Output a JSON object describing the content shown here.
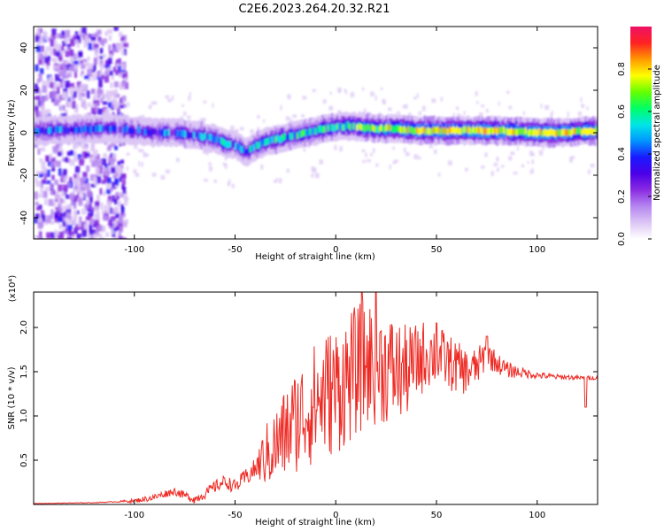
{
  "title": "C2E6.2023.264.20.32.R21",
  "colors": {
    "snr_line": "#ee2a24",
    "axis": "#000000",
    "colormap": [
      "#ffffff",
      "#dcc6f5",
      "#b586f0",
      "#8a2be2",
      "#4b00e8",
      "#1a1aff",
      "#0096ff",
      "#00e6e6",
      "#00ff66",
      "#66ff00",
      "#ffff00",
      "#ff9900",
      "#ff2222",
      "#ee1166"
    ]
  },
  "chart_data": [
    {
      "type": "heatmap",
      "xlabel": "Height of straight line (km)",
      "ylabel": "Frequency (Hz)",
      "xlim": [
        -150,
        130
      ],
      "ylim": [
        -50,
        50
      ],
      "xticks": [
        -100,
        -50,
        0,
        50,
        100
      ],
      "yticks": [
        -40,
        -20,
        0,
        20,
        40
      ],
      "grid": false,
      "colorbar": {
        "label": "Normalized spectral amplitude",
        "range": [
          0.0,
          1.0
        ],
        "ticks": [
          "0.0",
          "0.2",
          "0.4",
          "0.6",
          "0.8"
        ],
        "position": "right"
      },
      "ridge_center_hz": {
        "x": [
          -150,
          -110,
          -100,
          -90,
          -80,
          -70,
          -60,
          -55,
          -50,
          -45,
          -40,
          -35,
          -30,
          -20,
          -10,
          0,
          10,
          20,
          30,
          40,
          60,
          80,
          100,
          110,
          130
        ],
        "y": [
          1,
          2,
          1,
          0,
          0,
          -1,
          -3,
          -5,
          -6,
          -9,
          -6,
          -4,
          -3,
          -1,
          1,
          3,
          3,
          2,
          2,
          1,
          1,
          1,
          0,
          0,
          1
        ]
      },
      "noise_region_x": [
        -150,
        -105
      ]
    },
    {
      "type": "line",
      "xlabel": "Height of straight line (km)",
      "ylabel": "SNR (10 * v/v)",
      "y_scale_label": "(x10⁴)",
      "xlim": [
        -150,
        130
      ],
      "ylim": [
        0,
        2.4
      ],
      "xticks": [
        -100,
        -50,
        0,
        50,
        100
      ],
      "yticks": [
        0.5,
        1.0,
        1.5,
        2.0
      ],
      "grid": false,
      "envelope": {
        "x": [
          -150,
          -120,
          -100,
          -90,
          -85,
          -80,
          -75,
          -70,
          -65,
          -60,
          -55,
          -50,
          -45,
          -40,
          -35,
          -30,
          -25,
          -20,
          -15,
          -10,
          -5,
          0,
          5,
          10,
          15,
          20,
          25,
          30,
          35,
          40,
          45,
          50,
          55,
          60,
          65,
          70,
          75,
          80,
          85,
          90,
          95,
          100,
          105,
          110,
          115,
          120,
          125,
          130
        ],
        "y": [
          0.01,
          0.02,
          0.04,
          0.08,
          0.12,
          0.15,
          0.1,
          0.06,
          0.12,
          0.2,
          0.26,
          0.2,
          0.3,
          0.4,
          0.55,
          0.65,
          0.8,
          0.95,
          1.05,
          1.15,
          1.25,
          1.3,
          1.4,
          1.5,
          1.6,
          1.6,
          1.55,
          1.5,
          1.5,
          1.6,
          1.7,
          1.7,
          1.62,
          1.55,
          1.5,
          1.55,
          1.7,
          1.6,
          1.52,
          1.5,
          1.48,
          1.46,
          1.45,
          1.44,
          1.44,
          1.43,
          1.43,
          1.43
        ]
      },
      "noise_amplitude": {
        "x": [
          -150,
          -110,
          -90,
          -70,
          -60,
          -50,
          -40,
          -35,
          -30,
          -20,
          -10,
          0,
          10,
          20,
          30,
          40,
          50,
          60,
          70,
          80,
          90,
          100,
          110,
          130
        ],
        "y": [
          0.002,
          0.005,
          0.04,
          0.05,
          0.07,
          0.08,
          0.12,
          0.35,
          0.45,
          0.6,
          0.7,
          0.75,
          0.75,
          0.7,
          0.6,
          0.45,
          0.35,
          0.3,
          0.22,
          0.12,
          0.07,
          0.04,
          0.03,
          0.02
        ]
      },
      "peaks": [
        {
          "x": 13,
          "y": 2.4
        },
        {
          "x": 20,
          "y": 2.4
        },
        {
          "x": 50,
          "y": 2.05
        },
        {
          "x": 75,
          "y": 1.9
        },
        {
          "x": 124,
          "y": 1.1
        }
      ]
    }
  ]
}
